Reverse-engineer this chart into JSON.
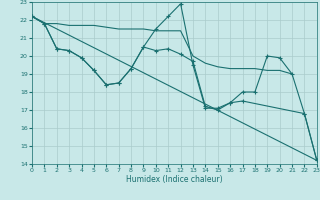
{
  "xlabel": "Humidex (Indice chaleur)",
  "xlim": [
    0,
    23
  ],
  "ylim": [
    14,
    23
  ],
  "yticks": [
    14,
    15,
    16,
    17,
    18,
    19,
    20,
    21,
    22,
    23
  ],
  "xticks": [
    0,
    1,
    2,
    3,
    4,
    5,
    6,
    7,
    8,
    9,
    10,
    11,
    12,
    13,
    14,
    15,
    16,
    17,
    18,
    19,
    20,
    21,
    22,
    23
  ],
  "bg_color": "#c8e8e8",
  "grid_color": "#aacccc",
  "line_color": "#1a7070",
  "line1_x": [
    0,
    1,
    2,
    3,
    4,
    5,
    6,
    7,
    8,
    9,
    10,
    11,
    12,
    13,
    14,
    15,
    16,
    17,
    18,
    19,
    20,
    21
  ],
  "line1_y": [
    22.2,
    21.8,
    21.8,
    21.7,
    21.7,
    21.7,
    21.6,
    21.5,
    21.5,
    21.5,
    21.4,
    21.4,
    21.4,
    20.0,
    19.6,
    19.4,
    19.3,
    19.3,
    19.3,
    19.2,
    19.2,
    19.0
  ],
  "line2_x": [
    0,
    1,
    2,
    3,
    4,
    5,
    6,
    7,
    8,
    9,
    10,
    11,
    12,
    13,
    14,
    15,
    16,
    17,
    18,
    19,
    20,
    21,
    22,
    23
  ],
  "line2_y": [
    22.2,
    21.8,
    20.4,
    20.3,
    19.9,
    19.2,
    18.4,
    18.5,
    19.3,
    20.5,
    20.3,
    20.4,
    20.1,
    19.7,
    17.2,
    17.0,
    17.4,
    18.0,
    18.0,
    20.0,
    19.9,
    19.0,
    16.8,
    14.2
  ],
  "line3_x": [
    0,
    1,
    2,
    3,
    4,
    5,
    6,
    7,
    8,
    9,
    10,
    11,
    12,
    13,
    14,
    15,
    16,
    17,
    22,
    23
  ],
  "line3_y": [
    22.2,
    21.8,
    20.4,
    20.3,
    19.9,
    19.2,
    18.4,
    18.5,
    19.3,
    20.5,
    21.5,
    22.2,
    22.9,
    19.5,
    17.1,
    17.1,
    17.4,
    17.5,
    16.8,
    14.2
  ],
  "line4_x": [
    0,
    23
  ],
  "line4_y": [
    22.2,
    14.2
  ]
}
